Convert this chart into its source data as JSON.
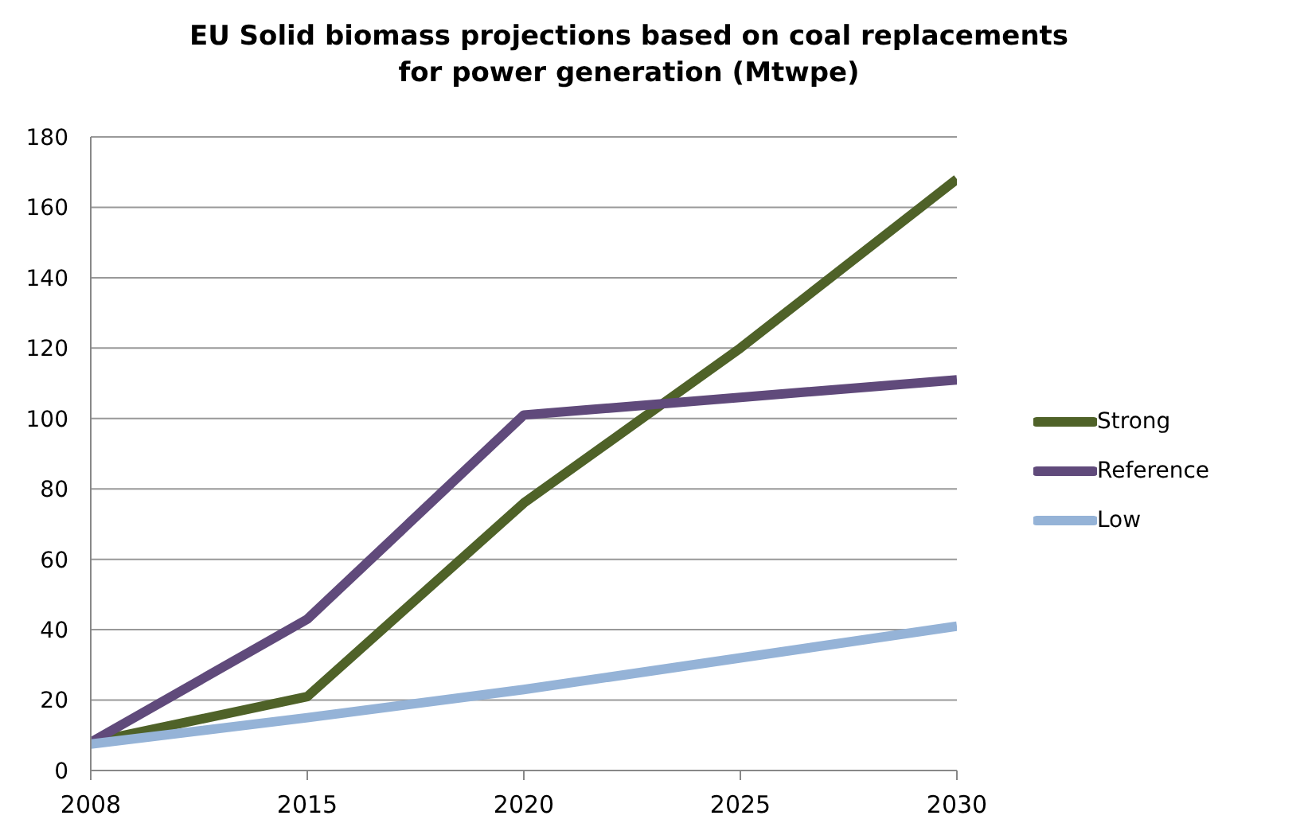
{
  "chart_data": {
    "type": "line",
    "title": "EU Solid biomass projections based on coal replacements\nfor power generation (Mtwpe)",
    "categories": [
      "2008",
      "2015",
      "2020",
      "2025",
      "2030"
    ],
    "series": [
      {
        "name": "Strong",
        "color": "#4f6228",
        "values": [
          8,
          21,
          76,
          120,
          168
        ]
      },
      {
        "name": "Reference",
        "color": "#604a7b",
        "values": [
          8,
          43,
          101,
          106,
          111
        ]
      },
      {
        "name": "Low",
        "color": "#95b3d7",
        "values": [
          7.5,
          15,
          23,
          32,
          41
        ]
      }
    ],
    "ylim": [
      0,
      180
    ],
    "yticks": [
      0,
      20,
      40,
      60,
      80,
      100,
      120,
      140,
      160,
      180
    ],
    "grid": "y",
    "legend": "right",
    "marker": "none",
    "line_style": "solid"
  }
}
